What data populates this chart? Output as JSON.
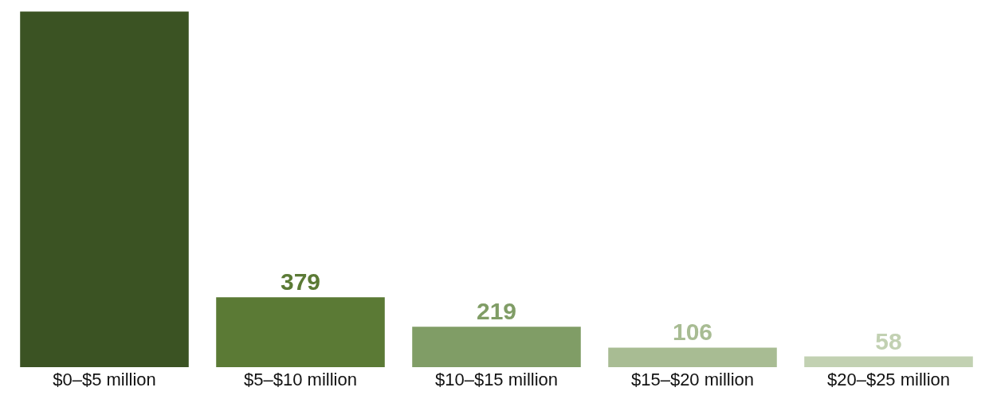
{
  "chart_data": {
    "type": "bar",
    "categories": [
      "$0–$5 million",
      "$5–$10 million",
      "$10–$15 million",
      "$15–$20 million",
      "$20–$25 million"
    ],
    "values": [
      1930,
      379,
      219,
      106,
      58
    ],
    "value_labels": [
      null,
      "379",
      "219",
      "106",
      "58"
    ],
    "colors": [
      "#3b5323",
      "#5b7a35",
      "#809d66",
      "#a8bc93",
      "#c2d1b2"
    ]
  }
}
